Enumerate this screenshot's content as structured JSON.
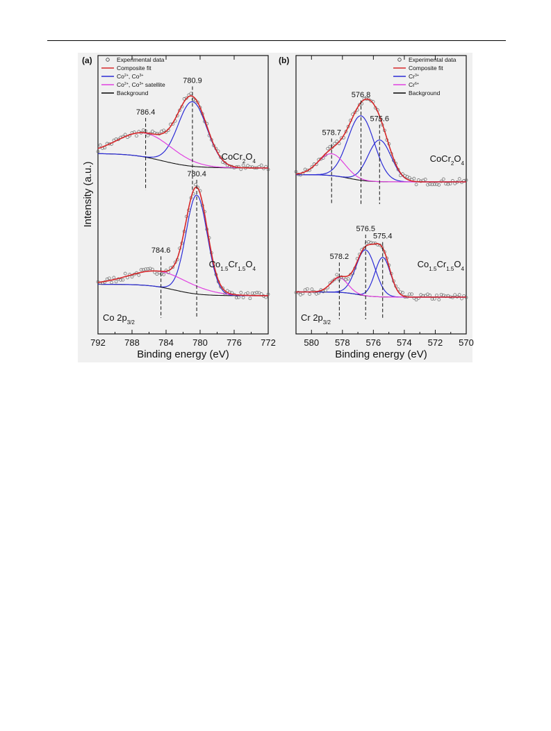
{
  "chart_data": [
    {
      "panel": "(a)",
      "type": "line",
      "xlabel": "Binding energy (eV)",
      "ylabel": "Intensity (a.u.)",
      "xlim": [
        792,
        772
      ],
      "x_reversed": true,
      "x_ticks": [
        792,
        788,
        784,
        780,
        776,
        772
      ],
      "core_level": "Co 2p",
      "core_level_sub": "3/2",
      "legend_position": "top-left",
      "legend": [
        {
          "label": "Experimental data",
          "kind": "marker",
          "color": "#555555"
        },
        {
          "label": "Composite fit",
          "kind": "line",
          "color": "#d62728"
        },
        {
          "label": "Co",
          "sup1": "2+",
          "mid": ", Co",
          "sup2": "3+",
          "after": "",
          "kind": "line",
          "color": "#2b2bd6"
        },
        {
          "label": "Co",
          "sup1": "2+",
          "mid": ", Co",
          "sup2": "3+",
          "after": " satellite",
          "kind": "line",
          "color": "#e040e0"
        },
        {
          "label": "Background",
          "kind": "line",
          "color": "#000000"
        }
      ],
      "samples": [
        {
          "name": "CoCr",
          "sub1": "2",
          "mid": "O",
          "sub2": "4",
          "sub_mid": "",
          "peaks": [
            {
              "component": "Co2+, Co3+",
              "center": 780.9,
              "width": 1.7,
              "amplitude": 0.62
            },
            {
              "component": "satellite",
              "center": 786.4,
              "width": 3.2,
              "amplitude": 0.23
            }
          ],
          "annotations": [
            786.4,
            780.9
          ],
          "background": {
            "low": 0.0,
            "high": 0.14,
            "center": 784.5,
            "width": 1.8
          }
        },
        {
          "name": "Co",
          "sub1": "1.5",
          "mid": "Cr",
          "sub2": "1.5",
          "sub_mid": "O",
          "sub3": "4",
          "peaks": [
            {
              "component": "Co2+, Co3+",
              "center": 780.4,
              "width": 1.25,
              "amplitude": 0.95
            },
            {
              "component": "satellite",
              "center": 784.6,
              "width": 3.6,
              "amplitude": 0.15
            }
          ],
          "annotations": [
            784.6,
            780.4
          ],
          "background": {
            "low": 0.0,
            "high": 0.11,
            "center": 783.0,
            "width": 1.5
          }
        }
      ]
    },
    {
      "panel": "(b)",
      "type": "line",
      "xlabel": "Binding energy (eV)",
      "ylabel": "",
      "xlim": [
        581,
        570
      ],
      "x_reversed": true,
      "x_ticks": [
        580,
        578,
        576,
        574,
        572,
        570
      ],
      "core_level": "Cr 2p",
      "core_level_sub": "3/2",
      "legend_position": "top-right",
      "legend": [
        {
          "label": "Experimental data",
          "kind": "marker",
          "color": "#555555"
        },
        {
          "label": "Composite fit",
          "kind": "line",
          "color": "#d62728"
        },
        {
          "label": "Cr",
          "sup1": "3+",
          "mid": "",
          "sup2": "",
          "after": "",
          "kind": "line",
          "color": "#2b2bd6"
        },
        {
          "label": "Cr",
          "sup1": "6+",
          "mid": "",
          "sup2": "",
          "after": "",
          "kind": "line",
          "color": "#e040e0"
        },
        {
          "label": "Background",
          "kind": "line",
          "color": "#000000"
        }
      ],
      "samples": [
        {
          "name": "CoCr",
          "sub1": "2",
          "mid": "O",
          "sub2": "4",
          "sub_mid": "",
          "peaks": [
            {
              "component": "Cr3+",
              "center": 576.8,
              "width": 0.85,
              "amplitude": 0.62
            },
            {
              "component": "Cr3+",
              "center": 575.6,
              "width": 0.75,
              "amplitude": 0.4
            },
            {
              "component": "Cr6+",
              "center": 578.7,
              "width": 0.85,
              "amplitude": 0.21
            }
          ],
          "annotations": [
            578.7,
            576.8,
            575.6
          ],
          "background": {
            "low": 0.0,
            "high": 0.07,
            "center": 577.6,
            "width": 0.6
          }
        },
        {
          "name": "Co",
          "sub1": "1.5",
          "mid": "Cr",
          "sub2": "1.5",
          "sub_mid": "O",
          "sub3": "4",
          "peaks": [
            {
              "component": "Cr3+",
              "center": 576.5,
              "width": 0.62,
              "amplitude": 0.44
            },
            {
              "component": "Cr3+",
              "center": 575.4,
              "width": 0.5,
              "amplitude": 0.38
            },
            {
              "component": "Cr6+",
              "center": 578.2,
              "width": 0.55,
              "amplitude": 0.14
            }
          ],
          "annotations": [
            578.2,
            576.5,
            575.4
          ],
          "background": {
            "low": 0.0,
            "high": 0.05,
            "center": 577.0,
            "width": 0.5
          }
        }
      ]
    }
  ]
}
